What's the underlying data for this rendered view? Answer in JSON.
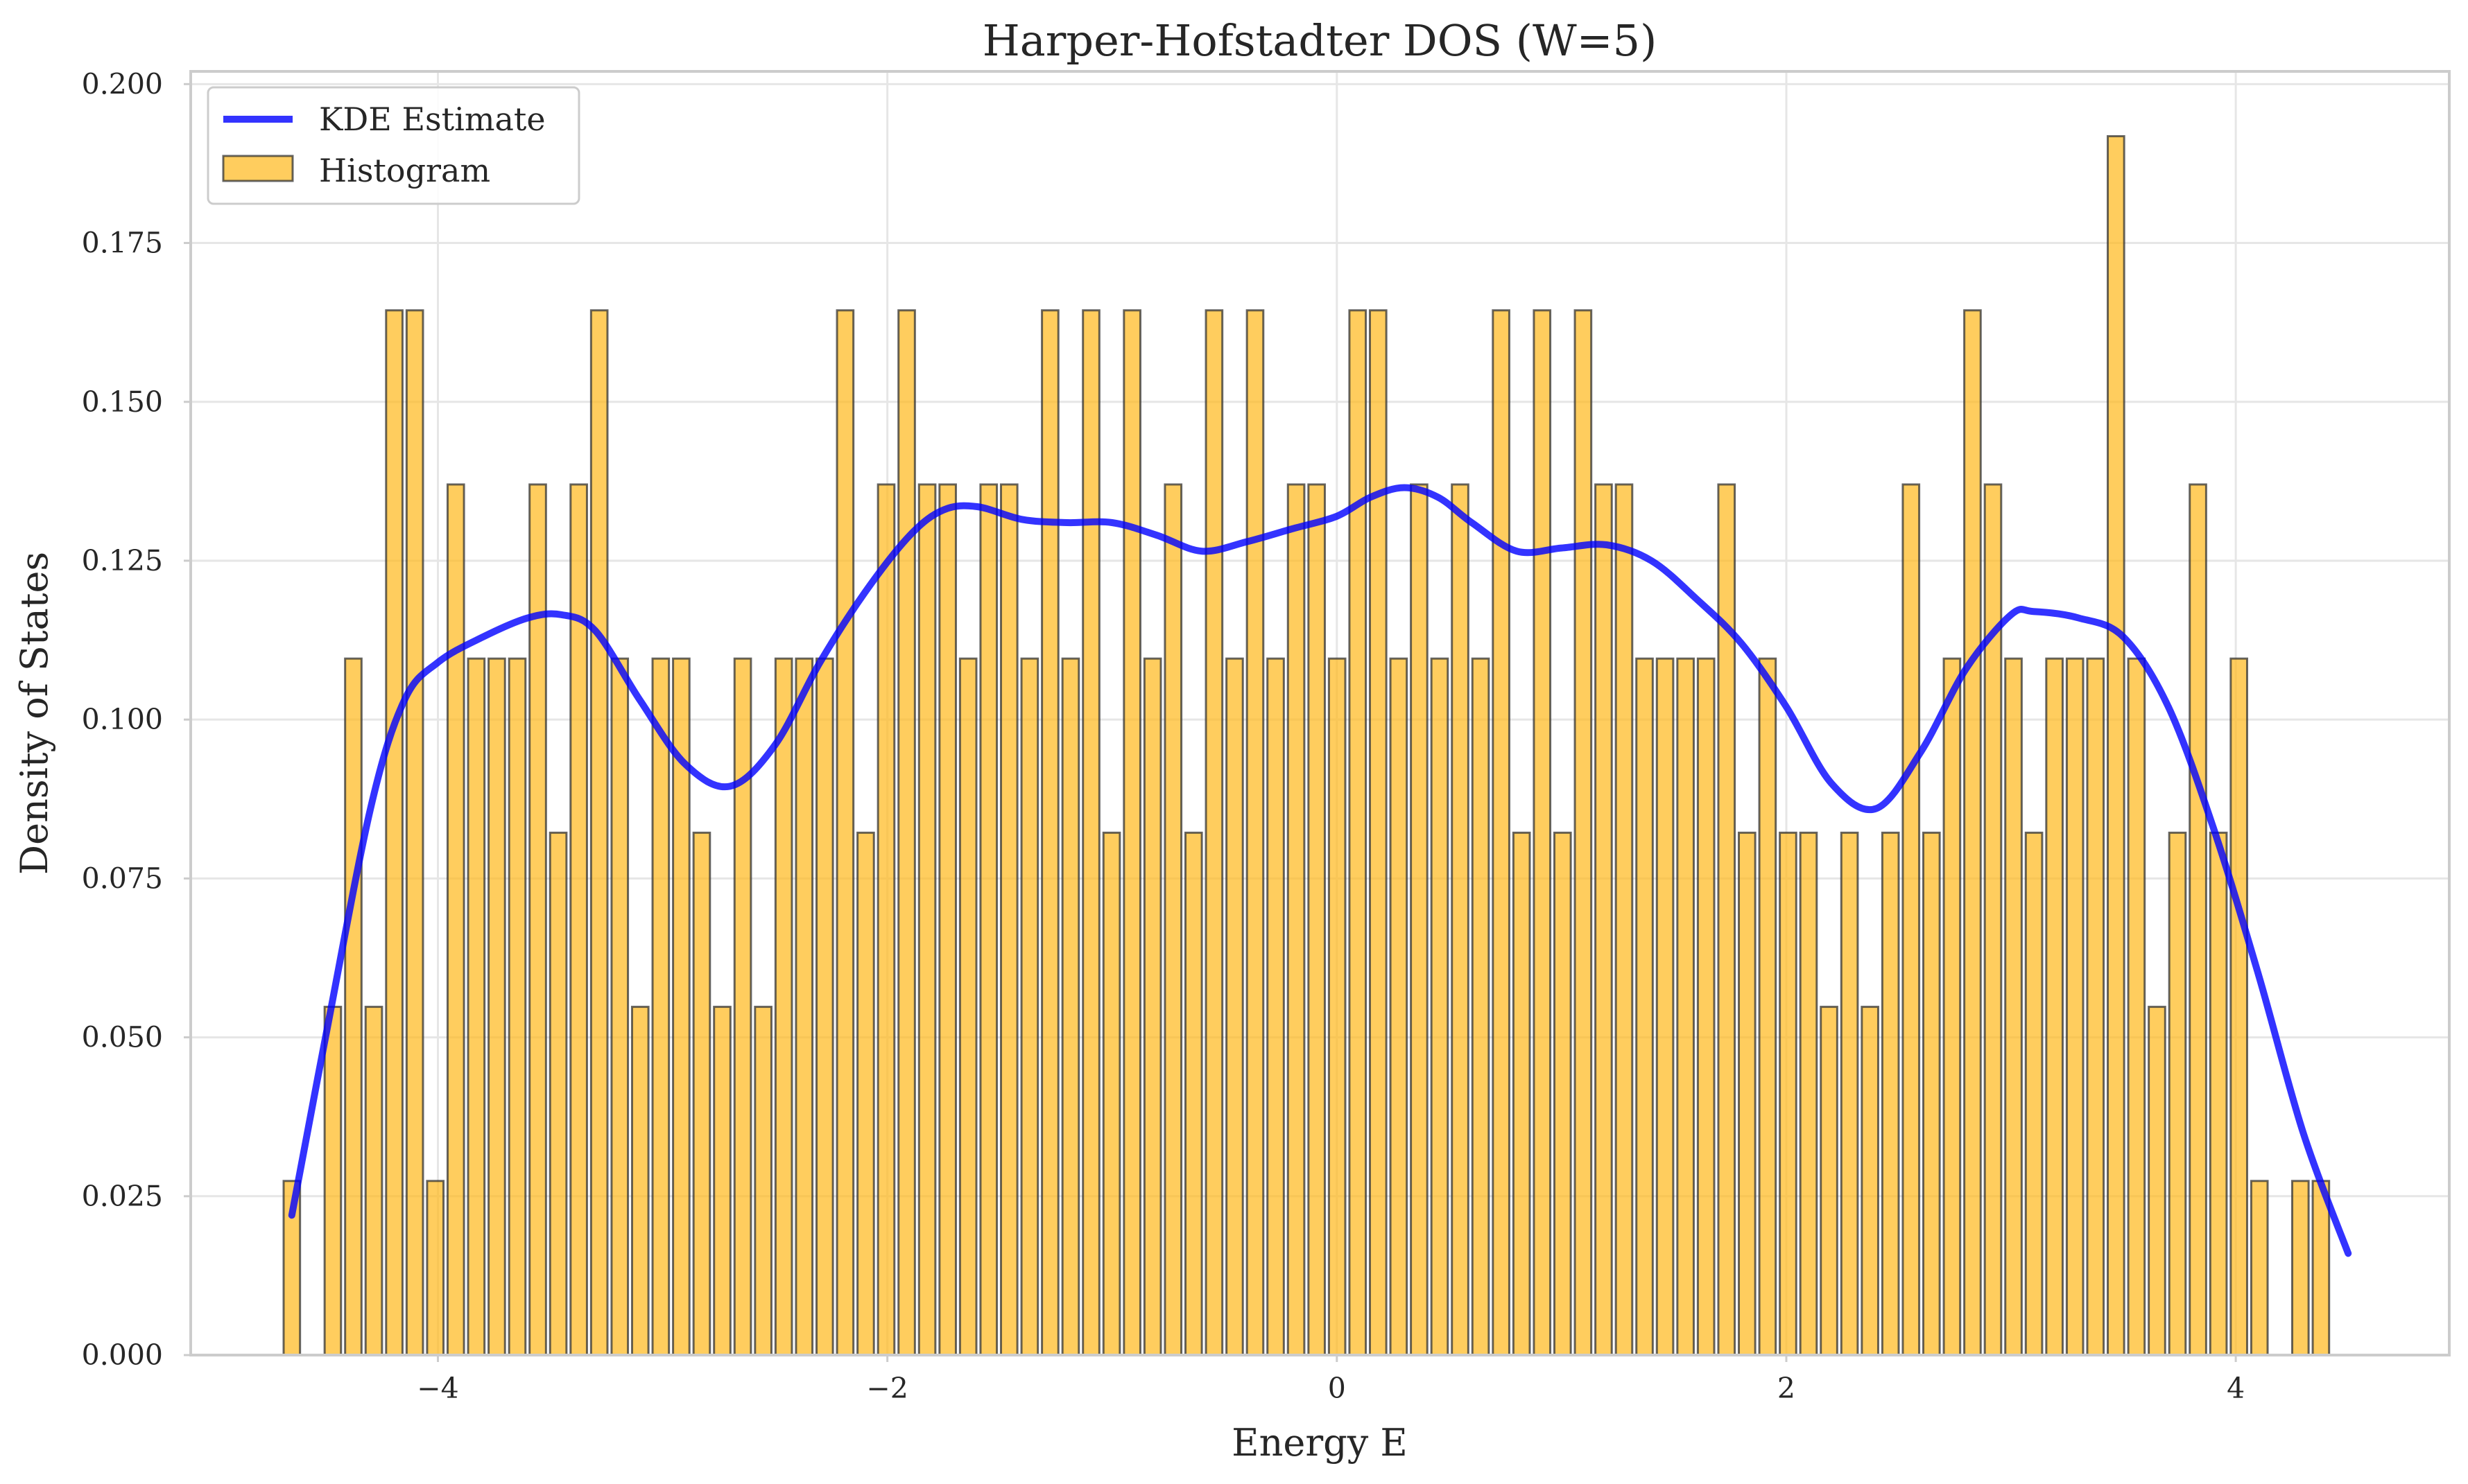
{
  "chart_data": {
    "type": "bar",
    "title": "Harper-Hofstadter DOS (W=5)",
    "xlabel": "Energy E",
    "ylabel": "Density of States",
    "xlim": [
      -5.1,
      4.95
    ],
    "ylim": [
      0,
      0.202
    ],
    "grid": true,
    "legend_position": "top-left",
    "x_ticks": [
      -4,
      -2,
      0,
      2,
      4
    ],
    "x_tick_labels": [
      "−4",
      "−2",
      "0",
      "2",
      "4"
    ],
    "y_ticks": [
      0,
      0.025,
      0.05,
      0.075,
      0.1,
      0.125,
      0.15,
      0.175,
      0.2
    ],
    "y_tick_labels": [
      "0.000",
      "0.025",
      "0.050",
      "0.075",
      "0.100",
      "0.125",
      "0.150",
      "0.175",
      "0.200"
    ],
    "histogram": {
      "name": "Histogram",
      "color": "#ffb81a",
      "edge_color": "#333333",
      "x_start": -4.65,
      "bin_width": 0.0912,
      "values": [
        0.0274,
        0,
        0.0548,
        0.1096,
        0.0548,
        0.1644,
        0.1644,
        0.0274,
        0.137,
        0.1096,
        0.1096,
        0.1096,
        0.137,
        0.0822,
        0.137,
        0.1644,
        0.1096,
        0.0548,
        0.1096,
        0.1096,
        0.0822,
        0.0548,
        0.1096,
        0.0548,
        0.1096,
        0.1096,
        0.1096,
        0.1644,
        0.0822,
        0.137,
        0.1644,
        0.137,
        0.137,
        0.1096,
        0.137,
        0.137,
        0.1096,
        0.1644,
        0.1096,
        0.1644,
        0.0822,
        0.1644,
        0.1096,
        0.137,
        0.0822,
        0.1644,
        0.1096,
        0.1644,
        0.1096,
        0.137,
        0.137,
        0.1096,
        0.1644,
        0.1644,
        0.1096,
        0.137,
        0.1096,
        0.137,
        0.1096,
        0.1644,
        0.0822,
        0.1644,
        0.0822,
        0.1644,
        0.137,
        0.137,
        0.1096,
        0.1096,
        0.1096,
        0.1096,
        0.137,
        0.0822,
        0.1096,
        0.0822,
        0.0822,
        0.0548,
        0.0822,
        0.0548,
        0.0822,
        0.137,
        0.0822,
        0.1096,
        0.1644,
        0.137,
        0.1096,
        0.0822,
        0.1096,
        0.1096,
        0.1096,
        0.1918,
        0.1096,
        0.0548,
        0.0822,
        0.137,
        0.0822,
        0.1096,
        0.0274,
        0,
        0.0274,
        0.0274
      ]
    },
    "series": [
      {
        "name": "KDE Estimate",
        "type": "line",
        "color": "#0000ff",
        "x": [
          -4.65,
          -4.5,
          -4.3,
          -4.15,
          -4.0,
          -3.8,
          -3.6,
          -3.45,
          -3.3,
          -3.1,
          -2.9,
          -2.7,
          -2.5,
          -2.3,
          -2.1,
          -1.9,
          -1.75,
          -1.6,
          -1.4,
          -1.2,
          -1.0,
          -0.8,
          -0.6,
          -0.4,
          -0.2,
          0.0,
          0.15,
          0.3,
          0.45,
          0.6,
          0.8,
          1.0,
          1.2,
          1.4,
          1.6,
          1.8,
          2.0,
          2.2,
          2.4,
          2.6,
          2.8,
          3.0,
          3.1,
          3.3,
          3.5,
          3.7,
          3.9,
          4.1,
          4.3,
          4.5
        ],
        "y": [
          0.022,
          0.05,
          0.086,
          0.103,
          0.109,
          0.113,
          0.116,
          0.1165,
          0.114,
          0.103,
          0.093,
          0.0895,
          0.096,
          0.109,
          0.12,
          0.129,
          0.133,
          0.1335,
          0.1315,
          0.131,
          0.131,
          0.129,
          0.1265,
          0.128,
          0.13,
          0.132,
          0.135,
          0.1365,
          0.135,
          0.131,
          0.1265,
          0.127,
          0.1275,
          0.125,
          0.119,
          0.112,
          0.102,
          0.09,
          0.086,
          0.095,
          0.108,
          0.1165,
          0.117,
          0.116,
          0.113,
          0.102,
          0.083,
          0.06,
          0.035,
          0.016
        ]
      }
    ]
  }
}
